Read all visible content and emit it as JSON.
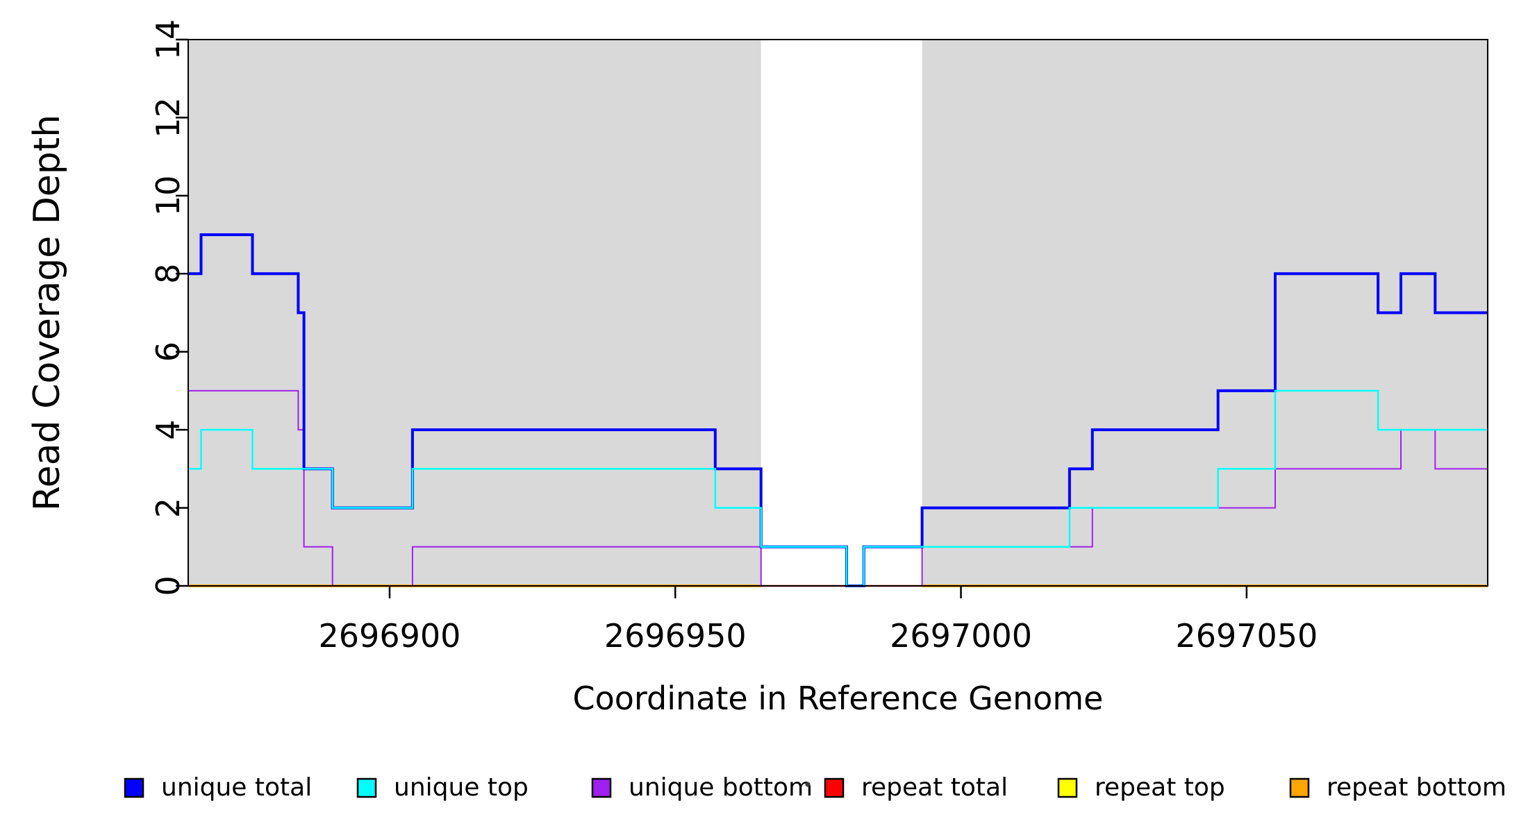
{
  "figure": {
    "background": "#FFFFFF",
    "plot_background": "#FFFFFF",
    "border_color": "#000000"
  },
  "chart_data": {
    "type": "line",
    "subtype": "step-coverage",
    "title": "",
    "xlabel": "Coordinate in Reference Genome",
    "ylabel": "Read Coverage Depth",
    "xlim": [
      2696864.75,
      2697092.2
    ],
    "ylim": [
      0,
      14
    ],
    "x_ticks": [
      2696900,
      2696950,
      2697000,
      2697050
    ],
    "y_ticks": [
      0,
      2,
      4,
      6,
      8,
      10,
      12,
      14
    ],
    "grid": "off",
    "repeat_regions": {
      "color": "#D9D9D9",
      "intervals": [
        [
          2696864.75,
          2696965
        ],
        [
          2696993.2,
          2697092.2
        ]
      ]
    },
    "unique_region_interval": [
      2696965,
      2696993.2
    ],
    "series": [
      {
        "name": "repeat total",
        "color": "#FF0000",
        "stroke_width": 2.5,
        "segments": [
          [
            [
              2696864.75,
              0
            ],
            [
              2697092.2,
              0
            ]
          ]
        ]
      },
      {
        "name": "repeat top",
        "color": "#FFFF00",
        "stroke_width": 2.5,
        "segments": [
          [
            [
              2696864.75,
              0
            ],
            [
              2696965,
              0
            ]
          ],
          [
            [
              2696993.2,
              0
            ],
            [
              2697092.2,
              0
            ]
          ]
        ]
      },
      {
        "name": "repeat bottom",
        "color": "#FFA500",
        "stroke_width": 4,
        "segments": [
          [
            [
              2696864.75,
              0
            ],
            [
              2696965,
              0
            ]
          ],
          [
            [
              2696993.2,
              0
            ],
            [
              2697092.2,
              0
            ]
          ]
        ]
      },
      {
        "name": "unique bottom",
        "color": "#A020F0",
        "stroke_width": 2,
        "segments": [
          [
            [
              2696864.75,
              5
            ],
            [
              2696884,
              4
            ],
            [
              2696885,
              1
            ],
            [
              2696890,
              0
            ],
            [
              2696904,
              1
            ],
            [
              2696965,
              0
            ],
            [
              2696993.2,
              1
            ],
            [
              2697023,
              2
            ],
            [
              2697055,
              3
            ],
            [
              2697077,
              4
            ],
            [
              2697083,
              3
            ],
            [
              2697092.2,
              3
            ]
          ]
        ]
      },
      {
        "name": "unique total",
        "color": "#0000FF",
        "stroke_width": 4,
        "segments": [
          [
            [
              2696864.75,
              8
            ],
            [
              2696867,
              9
            ],
            [
              2696876,
              8
            ],
            [
              2696884,
              7
            ],
            [
              2696885,
              3
            ],
            [
              2696890,
              2
            ],
            [
              2696904,
              4
            ],
            [
              2696957,
              3
            ],
            [
              2696965,
              1
            ],
            [
              2696980,
              0
            ],
            [
              2696983,
              1
            ],
            [
              2696993.2,
              2
            ],
            [
              2697019,
              3
            ],
            [
              2697023,
              4
            ],
            [
              2697045,
              5
            ],
            [
              2697055,
              8
            ],
            [
              2697073,
              7
            ],
            [
              2697077,
              8
            ],
            [
              2697083,
              7
            ],
            [
              2697092.2,
              7
            ]
          ]
        ]
      },
      {
        "name": "unique top",
        "color": "#00FFFF",
        "stroke_width": 2.5,
        "segments": [
          [
            [
              2696864.75,
              3
            ],
            [
              2696867,
              4
            ],
            [
              2696876,
              3
            ],
            [
              2696890,
              2
            ],
            [
              2696904,
              3
            ],
            [
              2696957,
              2
            ],
            [
              2696965,
              1
            ],
            [
              2696980,
              0
            ],
            [
              2696983,
              1
            ],
            [
              2697019,
              2
            ],
            [
              2697045,
              3
            ],
            [
              2697055,
              5
            ],
            [
              2697073,
              4
            ],
            [
              2697092.2,
              4
            ]
          ]
        ]
      }
    ],
    "legend": {
      "position": "bottom",
      "swatch_border": "#000000",
      "items": [
        {
          "label": "unique total",
          "color": "#0000FF"
        },
        {
          "label": "unique top",
          "color": "#00FFFF"
        },
        {
          "label": "unique bottom",
          "color": "#A020F0"
        },
        {
          "label": "repeat total",
          "color": "#FF0000"
        },
        {
          "label": "repeat top",
          "color": "#FFFF00"
        },
        {
          "label": "repeat bottom",
          "color": "#FFA500"
        }
      ],
      "stray_mark": {
        "present": true,
        "glyph": "·",
        "color": "#3a3a3a"
      }
    }
  }
}
